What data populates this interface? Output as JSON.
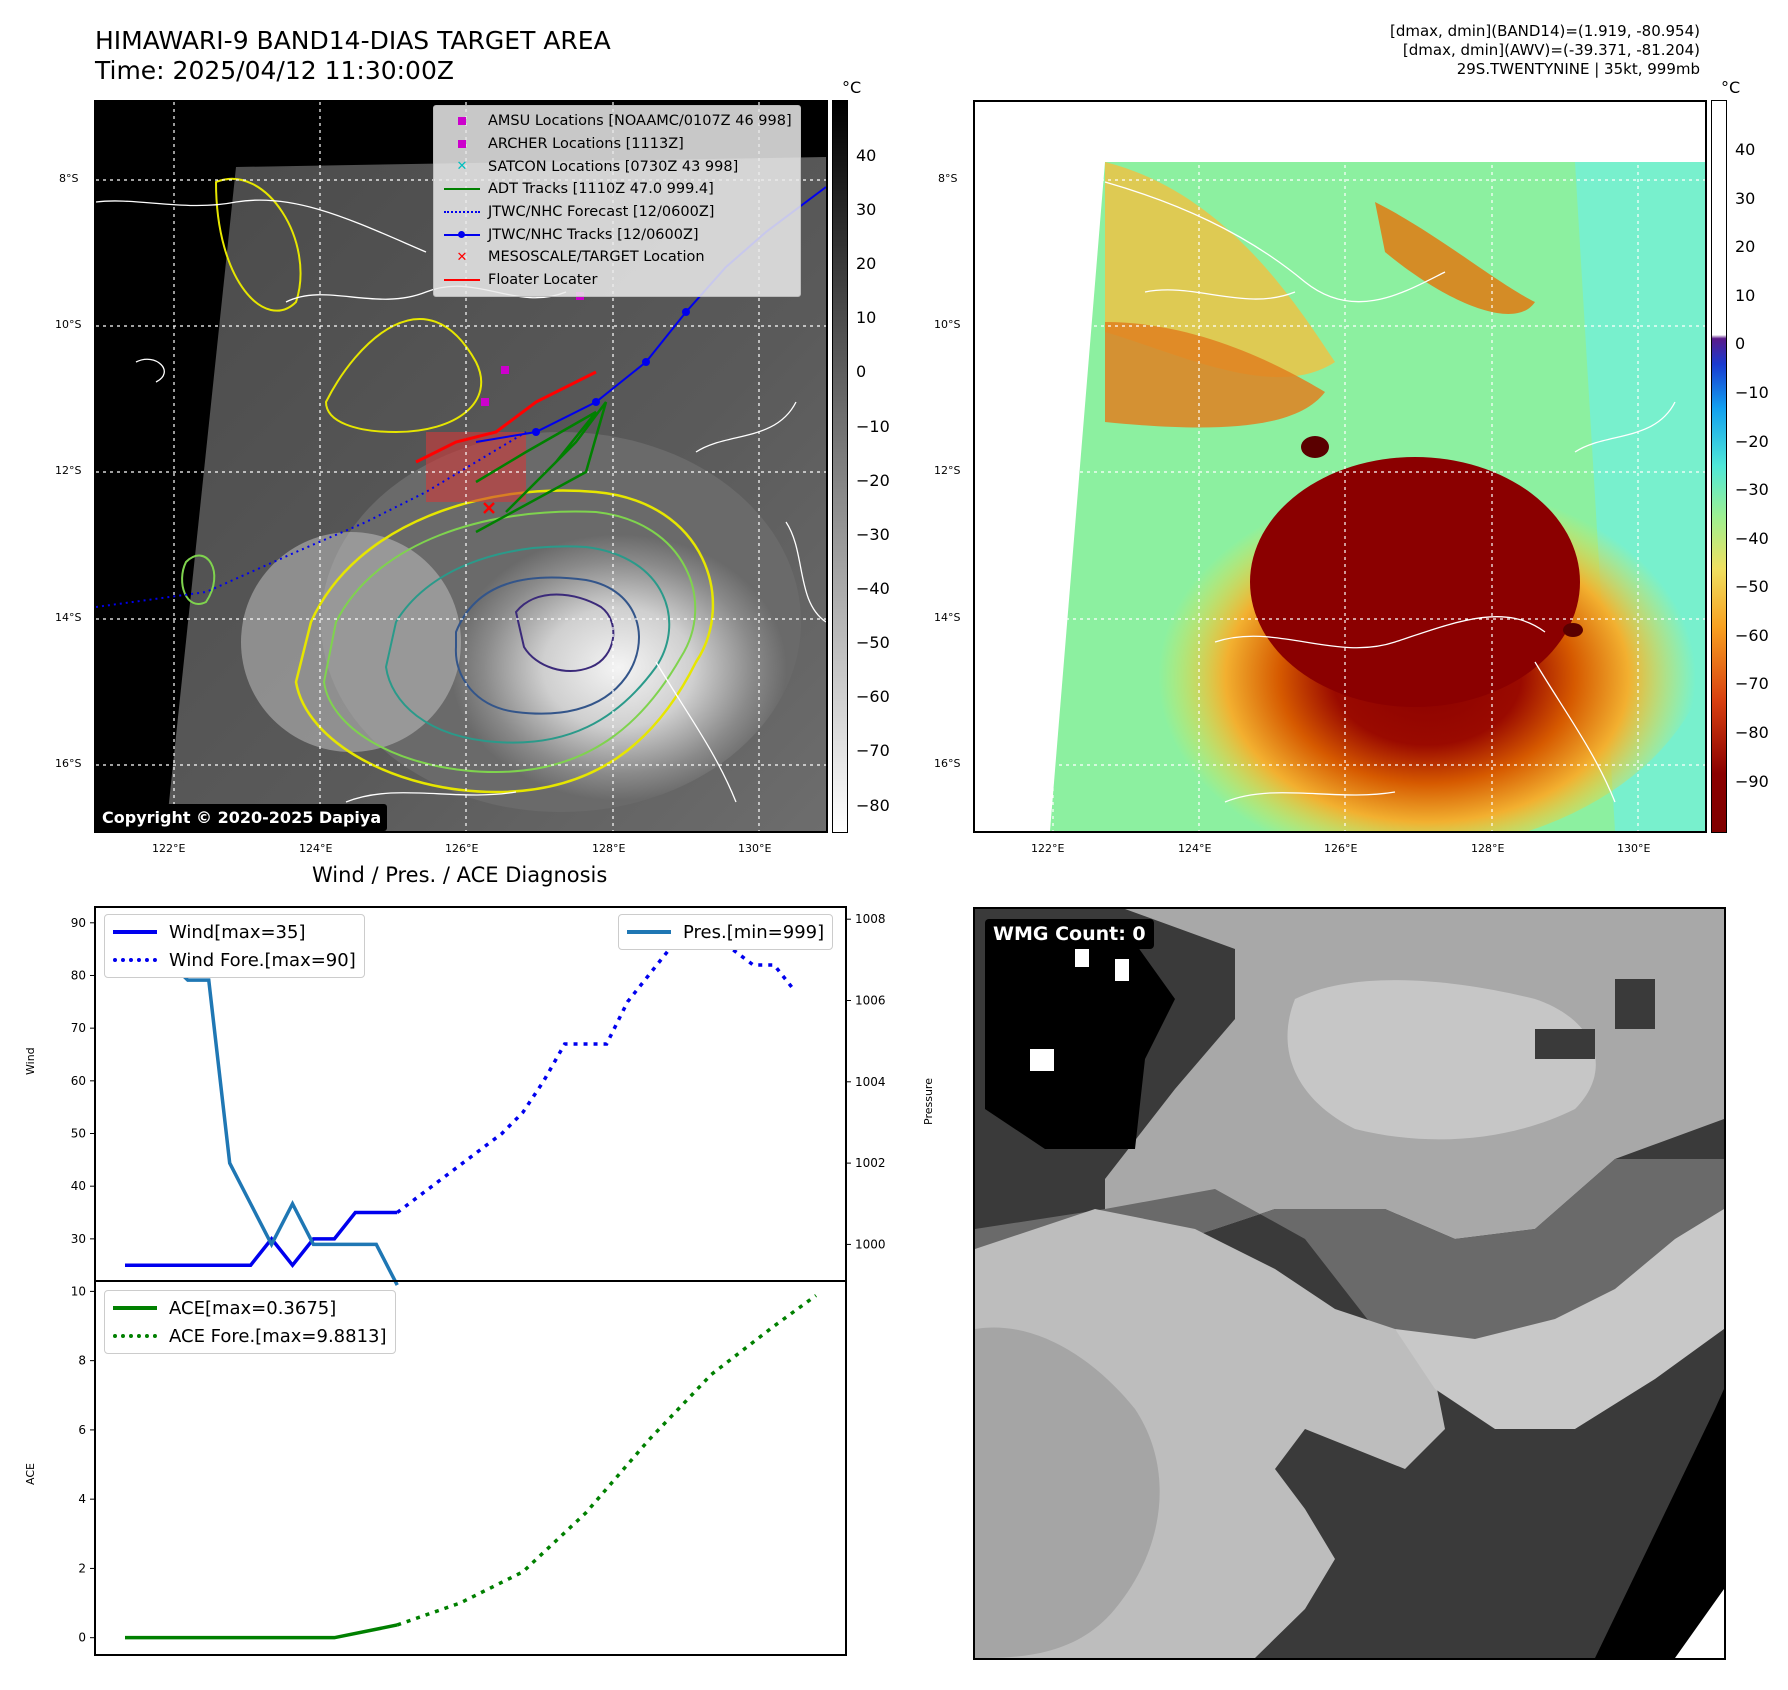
{
  "header": {
    "title_line1": "HIMAWARI-9 BAND14-DIAS TARGET AREA",
    "title_line2": "Time: 2025/04/12 11:30:00Z",
    "right_line1": "[dmax, dmin](BAND14)=(1.919, -80.954)",
    "right_line2": "[dmax, dmin](AWV)=(-39.371, -81.204)",
    "right_line3": "29S.TWENTYNINE | 35kt, 999mb"
  },
  "map_axes": {
    "lat_labels": [
      "8°S",
      "10°S",
      "12°S",
      "14°S",
      "16°S"
    ],
    "lon_labels": [
      "122°E",
      "124°E",
      "126°E",
      "128°E",
      "130°E"
    ]
  },
  "colorbar_left": {
    "unit": "°C",
    "ticks": [
      "40",
      "30",
      "20",
      "10",
      "0",
      "−10",
      "−20",
      "−30",
      "−40",
      "−50",
      "−60",
      "−70",
      "−80"
    ]
  },
  "colorbar_right": {
    "unit": "°C",
    "ticks": [
      "40",
      "30",
      "20",
      "10",
      "0",
      "−10",
      "−20",
      "−30",
      "−40",
      "−50",
      "−60",
      "−70",
      "−80",
      "−90"
    ]
  },
  "map_legend": {
    "items": [
      {
        "label": "AMSU Locations [NOAAMC/0107Z 46 998]",
        "color": "#cc00cc",
        "icon": "square-marker"
      },
      {
        "label": "ARCHER Locations [1113Z]",
        "color": "#cc00cc",
        "icon": "square-marker"
      },
      {
        "label": "SATCON Locations [0730Z 43 998]",
        "color": "#00bfbf",
        "icon": "x-marker"
      },
      {
        "label": "ADT Tracks [1110Z 47.0 999.4]",
        "color": "#008000",
        "icon": "solid-line"
      },
      {
        "label": "JTWC/NHC Forecast [12/0600Z]",
        "color": "#0000ff",
        "icon": "dotted-line"
      },
      {
        "label": "JTWC/NHC Tracks [12/0600Z]",
        "color": "#0000ff",
        "icon": "line-dot"
      },
      {
        "label": "MESOSCALE/TARGET Location",
        "color": "#ff0000",
        "icon": "x-marker"
      },
      {
        "label": "Floater Locater",
        "color": "#ff0000",
        "icon": "solid-line"
      }
    ]
  },
  "copyright": "Copyright © 2020-2025 Dapiya",
  "wmg": {
    "label": "WMG Count: 0"
  },
  "chart_data": [
    {
      "type": "line",
      "title": "Wind / Pres. / ACE Diagnosis",
      "ylabel": "Wind",
      "y2label": "Pressure",
      "ylim": [
        22,
        93
      ],
      "y2lim": [
        999.1,
        1008.3
      ],
      "yticks": [
        30,
        40,
        50,
        60,
        70,
        80,
        90
      ],
      "y2ticks": [
        1000,
        1002,
        1004,
        1006,
        1008
      ],
      "x": [
        0,
        1,
        2,
        3,
        4,
        5,
        6,
        7,
        8,
        9,
        10,
        11,
        12,
        13,
        14,
        15,
        16,
        17,
        18,
        19,
        20,
        21,
        22,
        23,
        24,
        25,
        26,
        27,
        28,
        29,
        30,
        31,
        32
      ],
      "series": [
        {
          "name": "Wind[max=35]",
          "color": "#0000ee",
          "style": "solid",
          "x": [
            0,
            1,
            2,
            3,
            4,
            5,
            6,
            7,
            8,
            9,
            10,
            11,
            12,
            13
          ],
          "values": [
            25,
            25,
            25,
            25,
            25,
            25,
            25,
            30,
            25,
            30,
            30,
            35,
            35,
            35
          ]
        },
        {
          "name": "Wind Fore.[max=90]",
          "color": "#0000ee",
          "style": "dotted",
          "x": [
            13,
            14,
            15,
            16,
            17,
            18,
            19,
            20,
            21,
            22,
            23,
            24,
            25,
            26,
            27,
            28,
            29,
            30,
            31,
            32
          ],
          "values": [
            35,
            38,
            41,
            44,
            47,
            50,
            54,
            60,
            67,
            67,
            67,
            75,
            80,
            85,
            87,
            88,
            85,
            82,
            82,
            77
          ]
        },
        {
          "name": "Pres.[min=999]",
          "color": "#1f77b4",
          "style": "solid",
          "axis": "right",
          "x": [
            0,
            1,
            2,
            3,
            4,
            5,
            6,
            7,
            8,
            9,
            10,
            11,
            12,
            13
          ],
          "values": [
            1008,
            1007,
            1007,
            1006.5,
            1006.5,
            1002,
            1001,
            1000,
            1001,
            1000,
            1000,
            1000,
            1000,
            999
          ]
        }
      ],
      "legend_left": "top-left",
      "legend_right": "top-right"
    },
    {
      "type": "line",
      "ylabel": "ACE",
      "ylim": [
        -0.5,
        10.3
      ],
      "yticks": [
        0,
        2,
        4,
        6,
        8,
        10
      ],
      "series": [
        {
          "name": "ACE[max=0.3675]",
          "color": "#008000",
          "style": "solid",
          "x": [
            0,
            10,
            13
          ],
          "values": [
            0,
            0,
            0.3675
          ]
        },
        {
          "name": "ACE Fore.[max=9.8813]",
          "color": "#008000",
          "style": "dotted",
          "x": [
            13,
            16,
            19,
            22,
            25,
            28,
            31,
            33
          ],
          "values": [
            0.3675,
            1.0,
            1.9,
            3.6,
            5.7,
            7.6,
            9.0,
            9.8813
          ]
        }
      ],
      "legend": "top-left"
    }
  ]
}
